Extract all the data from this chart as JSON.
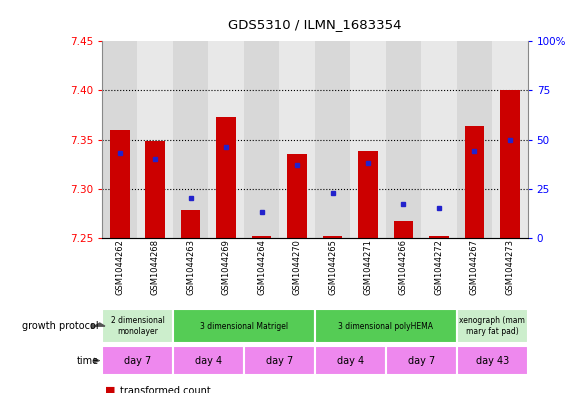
{
  "title": "GDS5310 / ILMN_1683354",
  "samples": [
    "GSM1044262",
    "GSM1044268",
    "GSM1044263",
    "GSM1044269",
    "GSM1044264",
    "GSM1044270",
    "GSM1044265",
    "GSM1044271",
    "GSM1044266",
    "GSM1044272",
    "GSM1044267",
    "GSM1044273"
  ],
  "transformed_count": [
    7.36,
    7.348,
    7.278,
    7.373,
    7.252,
    7.335,
    7.252,
    7.338,
    7.267,
    7.252,
    7.364,
    7.4
  ],
  "percentile_rank": [
    43,
    40,
    20,
    46,
    13,
    37,
    23,
    38,
    17,
    15,
    44,
    50
  ],
  "ymin": 7.25,
  "ymax": 7.45,
  "yticks": [
    7.25,
    7.3,
    7.35,
    7.4,
    7.45
  ],
  "right_yticks": [
    0,
    25,
    50,
    75,
    100
  ],
  "right_yticklabels": [
    "0",
    "25",
    "50",
    "75",
    "100%"
  ],
  "bar_color": "#cc0000",
  "dot_color": "#2222cc",
  "growth_protocol_groups": [
    {
      "label": "2 dimensional\nmonolayer",
      "start": 0,
      "end": 2,
      "color": "#cceecc"
    },
    {
      "label": "3 dimensional Matrigel",
      "start": 2,
      "end": 6,
      "color": "#55cc55"
    },
    {
      "label": "3 dimensional polyHEMA",
      "start": 6,
      "end": 10,
      "color": "#55cc55"
    },
    {
      "label": "xenograph (mam\nmary fat pad)",
      "start": 10,
      "end": 12,
      "color": "#cceecc"
    }
  ],
  "time_groups": [
    {
      "label": "day 7",
      "start": 0,
      "end": 2
    },
    {
      "label": "day 4",
      "start": 2,
      "end": 4
    },
    {
      "label": "day 7",
      "start": 4,
      "end": 6
    },
    {
      "label": "day 4",
      "start": 6,
      "end": 8
    },
    {
      "label": "day 7",
      "start": 8,
      "end": 10
    },
    {
      "label": "day 43",
      "start": 10,
      "end": 12
    }
  ],
  "time_color": "#ee88ee",
  "col_bg_even": "#d8d8d8",
  "col_bg_odd": "#e8e8e8",
  "grid_lines": [
    7.3,
    7.35,
    7.4
  ]
}
